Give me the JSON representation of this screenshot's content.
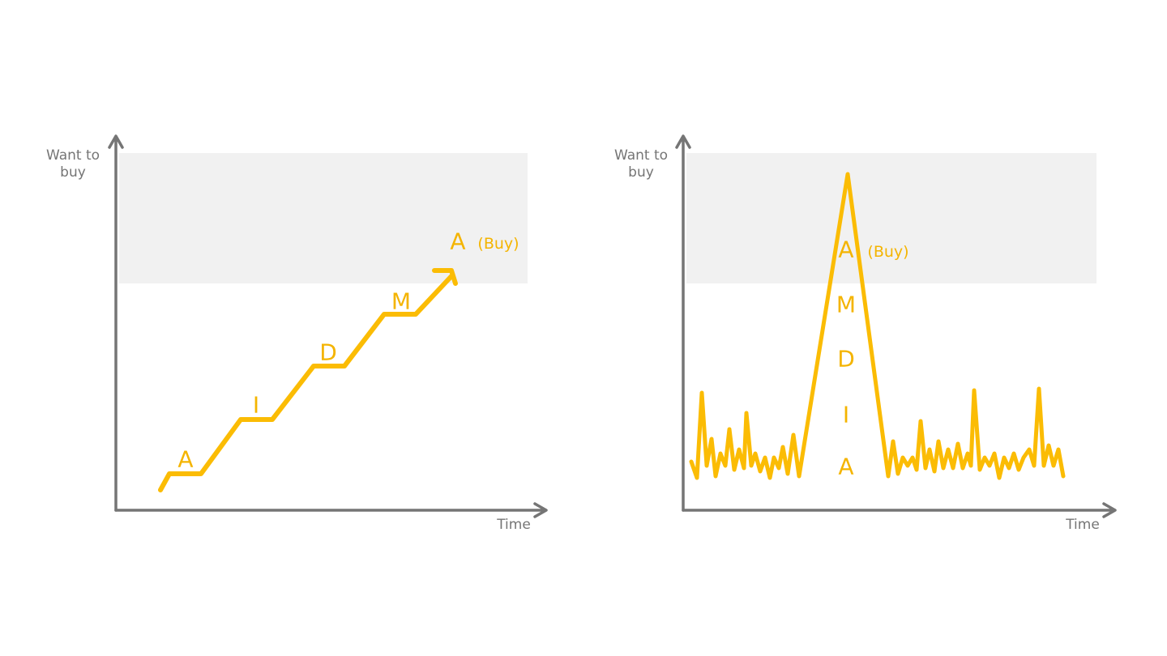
{
  "panels": [
    {
      "y_label": "Want to buy",
      "x_label": "Time",
      "stages": [
        "A",
        "I",
        "D",
        "M",
        "A"
      ],
      "buy_label": "(Buy)"
    },
    {
      "y_label": "Want to buy",
      "x_label": "Time",
      "stages": [
        "A",
        "I",
        "D",
        "M",
        "A"
      ],
      "buy_label": "(Buy)"
    }
  ]
}
